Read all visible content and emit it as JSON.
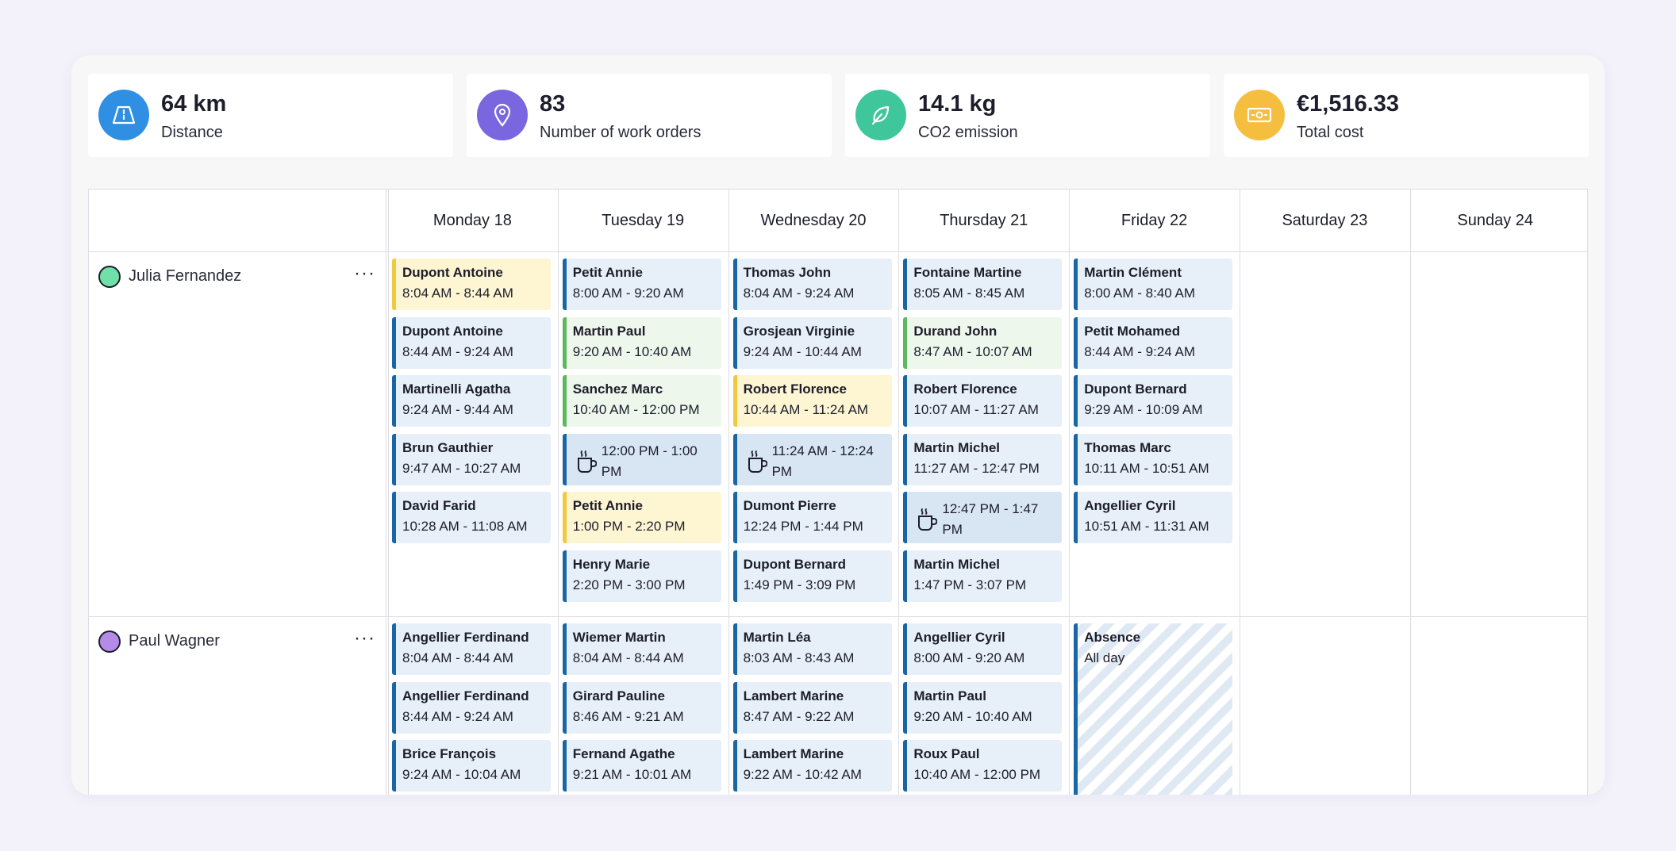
{
  "stats": [
    {
      "value": "64 km",
      "label": "Distance",
      "color": "#2f8fe3",
      "icon": "road-icon"
    },
    {
      "value": "83",
      "label": "Number of work orders",
      "color": "#7a67e0",
      "icon": "map-pin-icon"
    },
    {
      "value": "14.1 kg",
      "label": "CO2 emission",
      "color": "#3fc69a",
      "icon": "leaf-icon"
    },
    {
      "value": "€1,516.33",
      "label": "Total cost",
      "color": "#f6be3f",
      "icon": "banknote-icon"
    }
  ],
  "days": [
    "Monday 18",
    "Tuesday 19",
    "Wednesday 20",
    "Thursday 21",
    "Friday 22",
    "Saturday 23",
    "Sunday 24"
  ],
  "people": [
    {
      "name": "Julia Fernandez",
      "color": "#6fe0a8",
      "menu": "···",
      "columns": [
        [
          {
            "name": "Dupont Antoine",
            "time": "8:04 AM - 8:44 AM",
            "style": "yellow"
          },
          {
            "name": "Dupont Antoine",
            "time": "8:44 AM - 9:24 AM",
            "style": "blue"
          },
          {
            "name": "Martinelli Agatha",
            "time": "9:24 AM - 9:44 AM",
            "style": "blue"
          },
          {
            "name": "Brun Gauthier",
            "time": "9:47 AM - 10:27 AM",
            "style": "blue"
          },
          {
            "name": "David Farid",
            "time": "10:28 AM - 11:08 AM",
            "style": "blue"
          }
        ],
        [
          {
            "name": "Petit Annie",
            "time": "8:00 AM - 9:20 AM",
            "style": "blue"
          },
          {
            "name": "Martin Paul",
            "time": "9:20 AM - 10:40 AM",
            "style": "green"
          },
          {
            "name": "Sanchez Marc",
            "time": "10:40 AM - 12:00 PM",
            "style": "green"
          },
          {
            "break": true,
            "time": "12:00 PM - 1:00 PM"
          },
          {
            "name": "Petit Annie",
            "time": "1:00 PM - 2:20 PM",
            "style": "yellow"
          },
          {
            "name": "Henry Marie",
            "time": "2:20 PM - 3:00 PM",
            "style": "blue"
          }
        ],
        [
          {
            "name": "Thomas John",
            "time": "8:04 AM - 9:24 AM",
            "style": "blue"
          },
          {
            "name": "Grosjean Virginie",
            "time": "9:24 AM - 10:44 AM",
            "style": "blue"
          },
          {
            "name": "Robert Florence",
            "time": "10:44 AM - 11:24 AM",
            "style": "yellow"
          },
          {
            "break": true,
            "time": "11:24 AM - 12:24 PM"
          },
          {
            "name": "Dumont Pierre",
            "time": "12:24 PM - 1:44 PM",
            "style": "blue"
          },
          {
            "name": "Dupont Bernard",
            "time": "1:49 PM - 3:09 PM",
            "style": "blue"
          }
        ],
        [
          {
            "name": "Fontaine Martine",
            "time": "8:05 AM - 8:45 AM",
            "style": "blue"
          },
          {
            "name": "Durand John",
            "time": "8:47 AM - 10:07 AM",
            "style": "green"
          },
          {
            "name": "Robert Florence",
            "time": "10:07 AM - 11:27 AM",
            "style": "blue"
          },
          {
            "name": "Martin Michel",
            "time": "11:27 AM - 12:47 PM",
            "style": "blue"
          },
          {
            "break": true,
            "time": "12:47 PM - 1:47 PM"
          },
          {
            "name": "Martin Michel",
            "time": "1:47 PM - 3:07 PM",
            "style": "blue"
          }
        ],
        [
          {
            "name": "Martin Clément",
            "time": "8:00 AM - 8:40 AM",
            "style": "blue"
          },
          {
            "name": "Petit Mohamed",
            "time": "8:44 AM - 9:24 AM",
            "style": "blue"
          },
          {
            "name": "Dupont Bernard",
            "time": "9:29 AM - 10:09 AM",
            "style": "blue"
          },
          {
            "name": "Thomas Marc",
            "time": "10:11 AM - 10:51 AM",
            "style": "blue"
          },
          {
            "name": "Angellier Cyril",
            "time": "10:51 AM - 11:31 AM",
            "style": "blue"
          }
        ],
        [],
        []
      ]
    },
    {
      "name": "Paul Wagner",
      "color": "#b58be8",
      "menu": "···",
      "columns": [
        [
          {
            "name": "Angellier Ferdinand",
            "time": "8:04 AM - 8:44 AM",
            "style": "blue"
          },
          {
            "name": "Angellier Ferdinand",
            "time": "8:44 AM - 9:24 AM",
            "style": "blue"
          },
          {
            "name": "Brice François",
            "time": "9:24 AM - 10:04 AM",
            "style": "blue"
          }
        ],
        [
          {
            "name": "Wiemer Martin",
            "time": "8:04 AM - 8:44 AM",
            "style": "blue"
          },
          {
            "name": "Girard Pauline",
            "time": "8:46 AM - 9:21 AM",
            "style": "blue"
          },
          {
            "name": "Fernand Agathe",
            "time": "9:21 AM - 10:01 AM",
            "style": "blue"
          }
        ],
        [
          {
            "name": "Martin Léa",
            "time": "8:03 AM - 8:43 AM",
            "style": "blue"
          },
          {
            "name": "Lambert Marine",
            "time": "8:47 AM - 9:22 AM",
            "style": "blue"
          },
          {
            "name": "Lambert Marine",
            "time": "9:22 AM - 10:42 AM",
            "style": "blue"
          }
        ],
        [
          {
            "name": "Angellier Cyril",
            "time": "8:00 AM - 9:20 AM",
            "style": "blue"
          },
          {
            "name": "Martin Paul",
            "time": "9:20 AM - 10:40 AM",
            "style": "blue"
          },
          {
            "name": "Roux Paul",
            "time": "10:40 AM - 12:00 PM",
            "style": "blue"
          }
        ],
        [
          {
            "name": "Absence",
            "time": "All day",
            "style": "absence"
          }
        ],
        [],
        []
      ]
    }
  ]
}
